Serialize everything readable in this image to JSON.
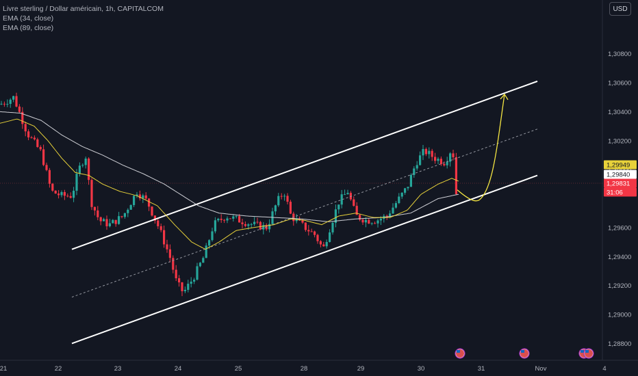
{
  "header": {
    "symbol_line": "Livre sterling / Dollar américain, 1h, CAPITALCOM",
    "indicators": [
      "EMA (34, close)",
      "EMA (89, close)"
    ]
  },
  "currency_button": "USD",
  "colors": {
    "background": "#131722",
    "up": "#26a69a",
    "down": "#f23645",
    "ema34": "#e8d23a",
    "ema89": "#cfd0d6",
    "channel": "#ffffff",
    "projection": "#f5e642"
  },
  "chart_data": {
    "type": "candlestick",
    "y_axis": {
      "ticks": [
        "1,30800",
        "1,30600",
        "1,30400",
        "1,30200",
        "1,30000",
        "1,29600",
        "1,29400",
        "1,29200",
        "1,29000",
        "1,28800"
      ],
      "range": [
        1.2875,
        1.3102
      ]
    },
    "x_axis": {
      "ticks": [
        "21",
        "22",
        "23",
        "24",
        "25",
        "28",
        "29",
        "30",
        "31",
        "Nov",
        "4"
      ]
    },
    "price_badges": [
      {
        "label": "1,29949",
        "value": 1.29949,
        "style": "ema34"
      },
      {
        "label": "1,29840",
        "value": 1.2984,
        "style": "ema89"
      },
      {
        "label": "1,29831",
        "value": 1.29831,
        "style": "last"
      },
      {
        "label": "31:06",
        "value": null,
        "style": "countdown"
      }
    ],
    "series": [
      {
        "name": "Candles",
        "path": [
          [
            0,
            1.3045
          ],
          [
            20,
            1.305
          ],
          [
            40,
            1.3025
          ],
          [
            60,
            1.3012
          ],
          [
            75,
            1.2985
          ],
          [
            90,
            1.2982
          ],
          [
            105,
            1.2982
          ],
          [
            115,
            1.3
          ],
          [
            125,
            1.301
          ],
          [
            133,
            1.2978
          ],
          [
            145,
            1.2965
          ],
          [
            160,
            1.2962
          ],
          [
            180,
            1.2968
          ],
          [
            200,
            1.2985
          ],
          [
            215,
            1.2978
          ],
          [
            232,
            1.296
          ],
          [
            248,
            1.294
          ],
          [
            258,
            1.2922
          ],
          [
            268,
            1.2915
          ],
          [
            282,
            1.2925
          ],
          [
            298,
            1.294
          ],
          [
            312,
            1.2962
          ],
          [
            330,
            1.2968
          ],
          [
            350,
            1.2965
          ],
          [
            370,
            1.2962
          ],
          [
            390,
            1.296
          ],
          [
            405,
            1.2978
          ],
          [
            415,
            1.2985
          ],
          [
            425,
            1.2968
          ],
          [
            440,
            1.2962
          ],
          [
            460,
            1.2955
          ],
          [
            472,
            1.2945
          ],
          [
            482,
            1.296
          ],
          [
            495,
            1.2978
          ],
          [
            508,
            1.2985
          ],
          [
            520,
            1.2968
          ],
          [
            535,
            1.2965
          ],
          [
            550,
            1.2965
          ],
          [
            565,
            1.2968
          ],
          [
            580,
            1.2978
          ],
          [
            595,
            1.2988
          ],
          [
            608,
            1.3005
          ],
          [
            620,
            1.3013
          ],
          [
            635,
            1.3008
          ],
          [
            650,
            1.3005
          ],
          [
            660,
            1.3015
          ],
          [
            666,
            1.3
          ],
          [
            670,
            1.2983
          ]
        ]
      },
      {
        "name": "EMA (34, close)",
        "path": [
          [
            0,
            1.3032
          ],
          [
            25,
            1.3035
          ],
          [
            50,
            1.303
          ],
          [
            70,
            1.302
          ],
          [
            90,
            1.3008
          ],
          [
            110,
            1.2998
          ],
          [
            130,
            1.2996
          ],
          [
            150,
            1.299
          ],
          [
            175,
            1.2985
          ],
          [
            200,
            1.2982
          ],
          [
            230,
            1.2975
          ],
          [
            255,
            1.2962
          ],
          [
            280,
            1.295
          ],
          [
            300,
            1.2945
          ],
          [
            320,
            1.295
          ],
          [
            345,
            1.2958
          ],
          [
            370,
            1.296
          ],
          [
            400,
            1.2962
          ],
          [
            425,
            1.2966
          ],
          [
            445,
            1.2965
          ],
          [
            470,
            1.2962
          ],
          [
            495,
            1.2968
          ],
          [
            520,
            1.297
          ],
          [
            545,
            1.2967
          ],
          [
            570,
            1.2967
          ],
          [
            595,
            1.2972
          ],
          [
            615,
            1.2983
          ],
          [
            640,
            1.299
          ],
          [
            660,
            1.2994
          ],
          [
            670,
            1.2992
          ]
        ]
      },
      {
        "name": "EMA (89, close)",
        "path": [
          [
            0,
            1.304
          ],
          [
            30,
            1.3039
          ],
          [
            60,
            1.3034
          ],
          [
            90,
            1.3024
          ],
          [
            120,
            1.3016
          ],
          [
            150,
            1.301
          ],
          [
            180,
            1.3003
          ],
          [
            210,
            1.2997
          ],
          [
            240,
            1.299
          ],
          [
            260,
            1.2984
          ],
          [
            290,
            1.2975
          ],
          [
            320,
            1.297
          ],
          [
            360,
            1.2968
          ],
          [
            400,
            1.2967
          ],
          [
            440,
            1.2966
          ],
          [
            480,
            1.2964
          ],
          [
            520,
            1.2966
          ],
          [
            560,
            1.2967
          ],
          [
            600,
            1.297
          ],
          [
            640,
            1.298
          ],
          [
            670,
            1.2983
          ]
        ]
      },
      {
        "name": "Channel upper",
        "path": [
          [
            105,
            1.2945
          ],
          [
            785,
            1.3061
          ]
        ]
      },
      {
        "name": "Channel lower",
        "path": [
          [
            105,
            1.288
          ],
          [
            785,
            1.2996
          ]
        ]
      },
      {
        "name": "Channel middle",
        "path": [
          [
            105,
            1.2912
          ],
          [
            785,
            1.3028
          ]
        ]
      },
      {
        "name": "Projection",
        "path": [
          [
            668,
            1.2986
          ],
          [
            700,
            1.2979
          ],
          [
            718,
            1.299
          ],
          [
            730,
            1.303
          ],
          [
            737,
            1.3052
          ]
        ]
      }
    ]
  }
}
